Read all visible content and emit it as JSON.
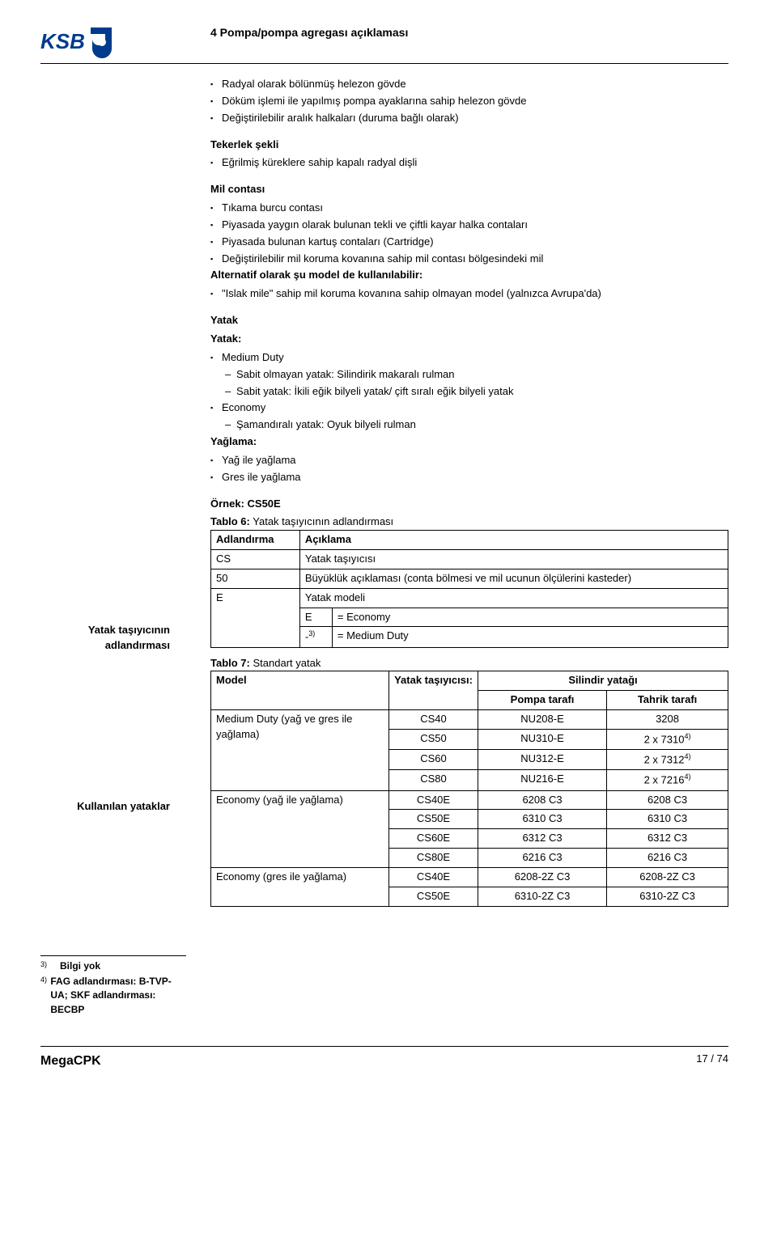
{
  "header": {
    "section": "4 Pompa/pompa agregası açıklaması"
  },
  "logo_text": "KSB",
  "body_bullets_1": [
    "Radyal olarak bölünmüş helezon gövde",
    "Döküm işlemi ile yapılmış pompa ayaklarına sahip helezon gövde",
    "Değiştirilebilir aralık halkaları (duruma bağlı olarak)"
  ],
  "tekerlek_title": "Tekerlek şekli",
  "tekerlek_items": [
    "Eğrilmiş küreklere sahip kapalı radyal dişli"
  ],
  "mil_title": "Mil contası",
  "mil_items": [
    "Tıkama burcu contası",
    "Piyasada yaygın olarak bulunan tekli ve çiftli kayar halka contaları",
    "Piyasada bulunan kartuş contaları (Cartridge)",
    "Değiştirilebilir mil koruma kovanına sahip mil contası bölgesindeki mil"
  ],
  "alt_title": "Alternatif olarak şu model de kullanılabilir:",
  "alt_items": [
    "\"Islak mile\" sahip mil koruma kovanına sahip olmayan model (yalnızca Avrupa'da)"
  ],
  "yatak_h1": "Yatak",
  "yatak_h2": "Yatak:",
  "yatak_md": "Medium Duty",
  "yatak_md_subs": [
    "Sabit olmayan yatak: Silindirik makaralı rulman",
    "Sabit yatak: İkili eğik bilyeli yatak/ çift sıralı eğik bilyeli yatak"
  ],
  "yatak_eco": "Economy",
  "yatak_eco_subs": [
    "Şamandıralı yatak: Oyuk bilyeli rulman"
  ],
  "yaglama_title": "Yağlama:",
  "yaglama_items": [
    "Yağ ile yağlama",
    "Gres ile yağlama"
  ],
  "ornek": "Örnek: CS50E",
  "side_label_1a": "Yatak taşıyıcının",
  "side_label_1b": "adlandırması",
  "table6_title": "Tablo 6: Yatak taşıyıcının adlandırması",
  "t6_h1": "Adlandırma",
  "t6_h2": "Açıklama",
  "t6_r1c1": "CS",
  "t6_r1c2": "Yatak taşıyıcısı",
  "t6_r2c1": "50",
  "t6_r2c2": "Büyüklük açıklaması (conta bölmesi ve mil ucunun ölçülerini kasteder)",
  "t6_r3c1": "E",
  "t6_r3c2": "Yatak modeli",
  "t6_r4a": "E",
  "t6_r4b": "= Economy",
  "t6_r5a": "-",
  "t6_r5b": "= Medium Duty",
  "side_label_2": "Kullanılan yataklar",
  "table7_title": "Tablo 7: Standart yatak",
  "t7_h_model": "Model",
  "t7_h_tasiyici": "Yatak taşıyıcısı:",
  "t7_h_silindir": "Silindir yatağı",
  "t7_h_pompa": "Pompa tarafı",
  "t7_h_tahrik": "Tahrik tarafı",
  "t7_rows": [
    {
      "model": "Medium Duty (yağ ve gres ile yağlama)",
      "span": 4,
      "cells": [
        [
          "CS40",
          "NU208-E",
          "3208"
        ],
        [
          "CS50",
          "NU310-E",
          "2 x 7310"
        ],
        [
          "CS60",
          "NU312-E",
          "2 x 7312"
        ],
        [
          "CS80",
          "NU216-E",
          "2 x 7216"
        ]
      ],
      "sup": [
        "",
        "4)",
        "4)",
        "4)"
      ]
    },
    {
      "model": "Economy (yağ ile yağlama)",
      "span": 4,
      "cells": [
        [
          "CS40E",
          "6208 C3",
          "6208 C3"
        ],
        [
          "CS50E",
          "6310 C3",
          "6310 C3"
        ],
        [
          "CS60E",
          "6312 C3",
          "6312 C3"
        ],
        [
          "CS80E",
          "6216 C3",
          "6216 C3"
        ]
      ],
      "sup": [
        "",
        "",
        "",
        ""
      ]
    },
    {
      "model": "Economy (gres ile yağlama)",
      "span": 2,
      "cells": [
        [
          "CS40E",
          "6208-2Z C3",
          "6208-2Z C3"
        ],
        [
          "CS50E",
          "6310-2Z C3",
          "6310-2Z C3"
        ]
      ],
      "sup": [
        "",
        ""
      ]
    }
  ],
  "fn3_num": "3)",
  "fn3_text": "Bilgi yok",
  "fn4_num": "4)",
  "fn4_text": "FAG adlandırması: B-TVP-UA; SKF adlandırması: BECBP",
  "footer_doc": "MegaCPK",
  "footer_page": "17 / 74"
}
